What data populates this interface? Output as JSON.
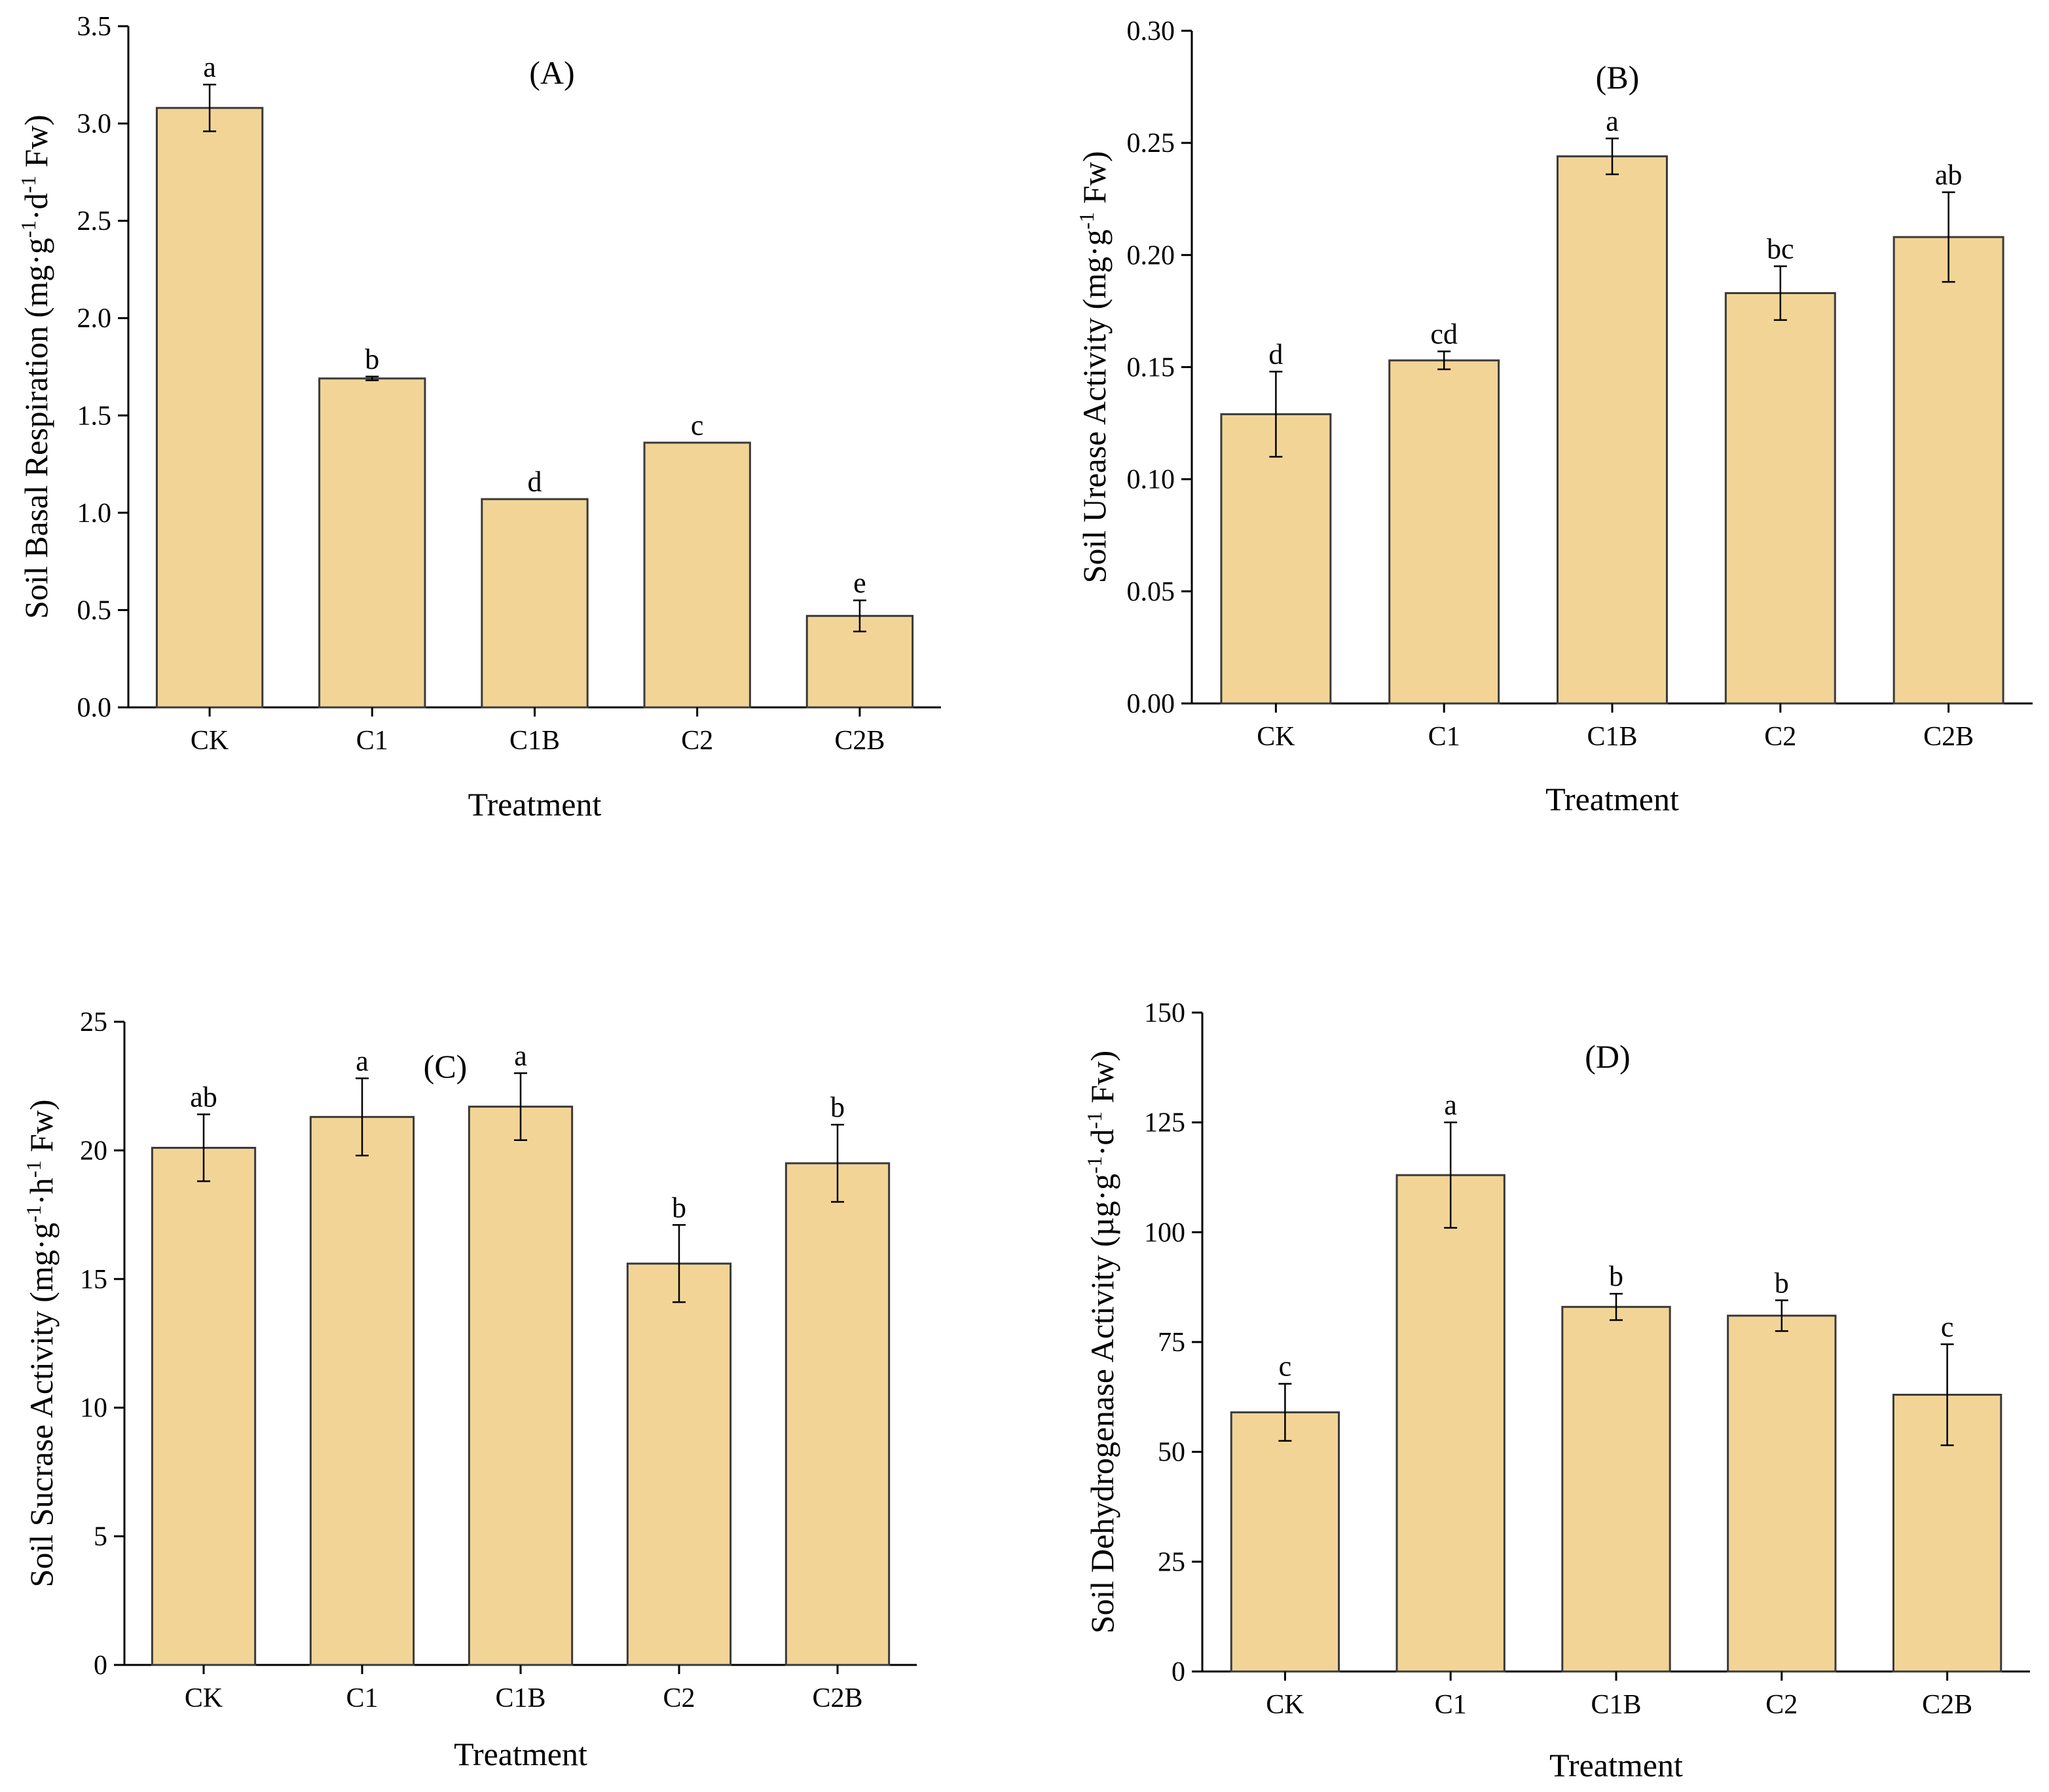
{
  "chart_data": [
    {
      "type": "bar",
      "panel_label": "(A)",
      "xlabel": "Treatment",
      "ylabel": "Soil Basal Respiration (mg·g⁻¹·d⁻¹ Fw)",
      "ylim": [
        0,
        3.5
      ],
      "yticks": [
        "0.0",
        "0.5",
        "1.0",
        "1.5",
        "2.0",
        "2.5",
        "3.0",
        "3.5"
      ],
      "categories": [
        "CK",
        "C1",
        "C1B",
        "C2",
        "C2B"
      ],
      "values": [
        3.08,
        1.69,
        1.07,
        1.36,
        0.47
      ],
      "errors": [
        0.12,
        0.01,
        0.0,
        0.0,
        0.08
      ],
      "significance": [
        "a",
        "b",
        "d",
        "c",
        "e"
      ],
      "bar_color": "#f2d596",
      "grid": false
    },
    {
      "type": "bar",
      "panel_label": "(B)",
      "xlabel": "Treatment",
      "ylabel": "Soil Urease Activity (mg·g⁻¹ Fw)",
      "ylim": [
        0,
        0.3
      ],
      "yticks": [
        "0.00",
        "0.05",
        "0.10",
        "0.15",
        "0.20",
        "0.25",
        "0.30"
      ],
      "categories": [
        "CK",
        "C1",
        "C1B",
        "C2",
        "C2B"
      ],
      "values": [
        0.129,
        0.153,
        0.244,
        0.183,
        0.208
      ],
      "errors": [
        0.019,
        0.004,
        0.008,
        0.012,
        0.02
      ],
      "significance": [
        "d",
        "cd",
        "a",
        "bc",
        "ab"
      ],
      "bar_color": "#f2d596",
      "grid": false
    },
    {
      "type": "bar",
      "panel_label": "(C)",
      "xlabel": "Treatment",
      "ylabel": "Soil Sucrase Activity (mg·g⁻¹·h⁻¹ Fw)",
      "ylim": [
        0,
        25
      ],
      "yticks": [
        "0",
        "5",
        "10",
        "15",
        "20",
        "25"
      ],
      "categories": [
        "CK",
        "C1",
        "C1B",
        "C2",
        "C2B"
      ],
      "values": [
        20.1,
        21.3,
        21.7,
        15.6,
        19.5
      ],
      "errors": [
        1.3,
        1.5,
        1.3,
        1.5,
        1.5
      ],
      "significance": [
        "ab",
        "a",
        "a",
        "b",
        "b"
      ],
      "bar_color": "#f2d596",
      "grid": false
    },
    {
      "type": "bar",
      "panel_label": "(D)",
      "xlabel": "Treatment",
      "ylabel": "Soil Dehydrogenase Activity (µg·g⁻¹·d⁻¹ Fw)",
      "ylim": [
        0,
        150
      ],
      "yticks": [
        "0",
        "25",
        "50",
        "75",
        "100",
        "125",
        "150"
      ],
      "categories": [
        "CK",
        "C1",
        "C1B",
        "C2",
        "C2B"
      ],
      "values": [
        59,
        113,
        83,
        81,
        63
      ],
      "errors": [
        6.5,
        12,
        3,
        3.5,
        11.5
      ],
      "significance": [
        "c",
        "a",
        "b",
        "b",
        "c"
      ],
      "bar_color": "#f2d596",
      "grid": false
    }
  ]
}
